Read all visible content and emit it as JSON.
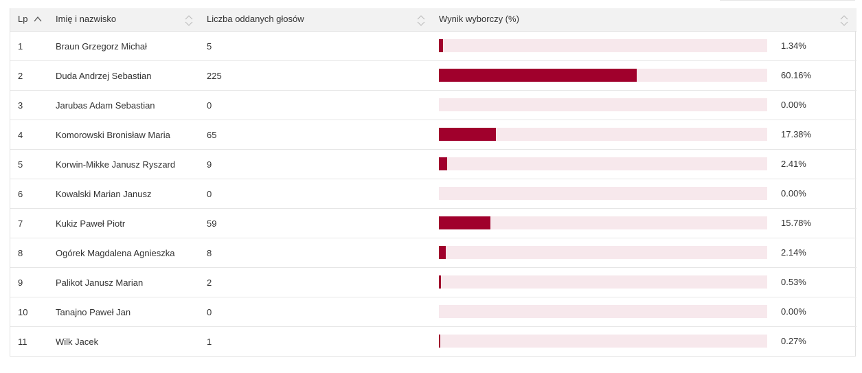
{
  "table": {
    "headers": {
      "lp": "Lp",
      "name": "Imię i nazwisko",
      "votes": "Liczba oddanych głosów",
      "result": "Wynik wyborczy (%)"
    },
    "rows": [
      {
        "lp": "1",
        "name": "Braun Grzegorz Michał",
        "votes": "5",
        "pct": "1.34%",
        "share": 1.34
      },
      {
        "lp": "2",
        "name": "Duda Andrzej Sebastian",
        "votes": "225",
        "pct": "60.16%",
        "share": 60.16
      },
      {
        "lp": "3",
        "name": "Jarubas Adam Sebastian",
        "votes": "0",
        "pct": "0.00%",
        "share": 0
      },
      {
        "lp": "4",
        "name": "Komorowski Bronisław Maria",
        "votes": "65",
        "pct": "17.38%",
        "share": 17.38
      },
      {
        "lp": "5",
        "name": "Korwin-Mikke Janusz Ryszard",
        "votes": "9",
        "pct": "2.41%",
        "share": 2.41
      },
      {
        "lp": "6",
        "name": "Kowalski Marian Janusz",
        "votes": "0",
        "pct": "0.00%",
        "share": 0
      },
      {
        "lp": "7",
        "name": "Kukiz Paweł Piotr",
        "votes": "59",
        "pct": "15.78%",
        "share": 15.78
      },
      {
        "lp": "8",
        "name": "Ogórek Magdalena Agnieszka",
        "votes": "8",
        "pct": "2.14%",
        "share": 2.14
      },
      {
        "lp": "9",
        "name": "Palikot Janusz Marian",
        "votes": "2",
        "pct": "0.53%",
        "share": 0.53
      },
      {
        "lp": "10",
        "name": "Tanajno Paweł Jan",
        "votes": "0",
        "pct": "0.00%",
        "share": 0
      },
      {
        "lp": "11",
        "name": "Wilk Jacek",
        "votes": "1",
        "pct": "0.27%",
        "share": 0.27
      }
    ]
  },
  "colors": {
    "bar_fill": "#a0002c",
    "bar_track": "#f7e8ec",
    "header_bg": "#f2f2f2"
  },
  "icons": {
    "lp_sort": "sort-ascending-icon",
    "name_sort": "sort-both-icon",
    "votes_sort": "sort-both-icon",
    "result_sort": "sort-both-icon"
  }
}
